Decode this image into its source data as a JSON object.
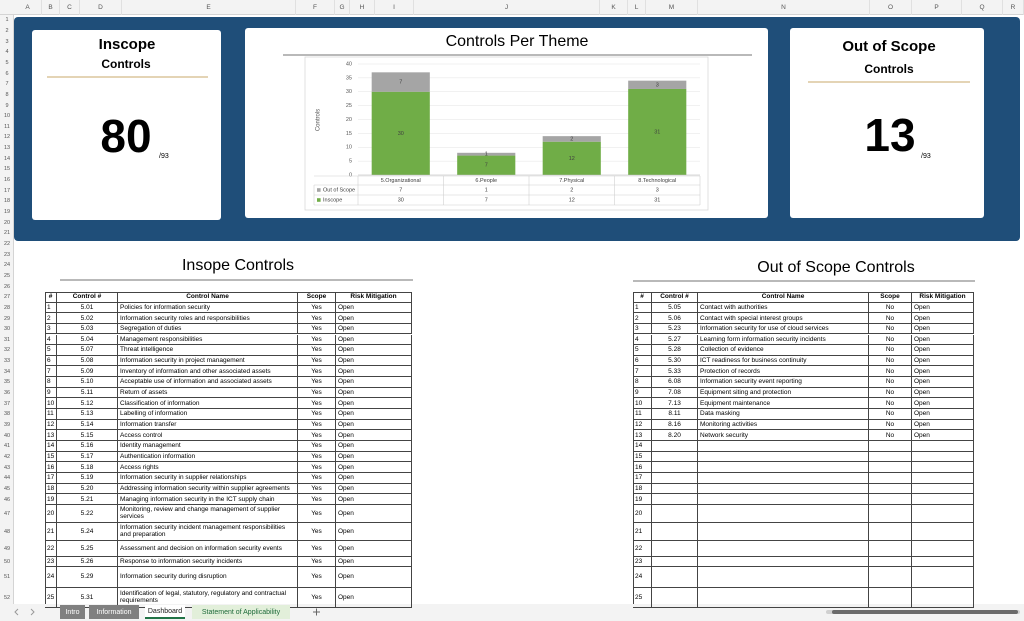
{
  "columns": [
    "A",
    "B",
    "C",
    "D",
    "E",
    "F",
    "G",
    "H",
    "I",
    "J",
    "K",
    "L",
    "M",
    "N",
    "O",
    "P",
    "Q",
    "R"
  ],
  "rows": [
    1,
    2,
    3,
    4,
    5,
    6,
    7,
    8,
    9,
    10,
    11,
    12,
    13,
    14,
    15,
    16,
    17,
    18,
    19,
    20,
    21,
    22,
    23,
    24,
    25,
    26,
    27,
    28,
    29,
    30,
    31,
    32,
    33,
    34,
    35,
    36,
    37,
    38,
    39,
    40,
    41,
    42,
    43,
    44,
    45,
    46,
    47,
    48,
    49,
    50,
    51,
    52
  ],
  "inscope_card": {
    "title": "Inscope",
    "subtitle": "Controls",
    "count": 80,
    "total": "/93"
  },
  "out_card": {
    "title": "Out of Scope",
    "subtitle": "Controls",
    "count": 13,
    "total": "/93"
  },
  "chart_data": {
    "type": "bar",
    "stacked": true,
    "title": "Controls Per Theme",
    "y_label": "Controls",
    "categories": [
      "5.Organizational",
      "6.People",
      "7.Physical",
      "8.Technological"
    ],
    "series": [
      {
        "name": "Out of Scope",
        "color": "#a5a5a5",
        "values": [
          7,
          1,
          2,
          3
        ]
      },
      {
        "name": "Inscope",
        "color": "#70ad47",
        "values": [
          30,
          7,
          12,
          31
        ]
      }
    ],
    "ylim": [
      0,
      40
    ],
    "yticks": [
      0,
      5,
      10,
      15,
      20,
      25,
      30,
      35,
      40
    ],
    "grid": true,
    "data_table": true
  },
  "inscope_table": {
    "title": "Insope Controls",
    "header": [
      "#",
      "Control #",
      "Control Name",
      "Scope",
      "Risk Mitigation"
    ],
    "rows": [
      [
        1,
        "5.01",
        "Policies for information security",
        "Yes",
        "Open"
      ],
      [
        2,
        "5.02",
        "Information security roles and responsibilities",
        "Yes",
        "Open"
      ],
      [
        3,
        "5.03",
        "Segregation of duties",
        "Yes",
        "Open"
      ],
      [
        4,
        "5.04",
        "Management responsibilities",
        "Yes",
        "Open"
      ],
      [
        5,
        "5.07",
        "Threat intelligence",
        "Yes",
        "Open"
      ],
      [
        6,
        "5.08",
        "Information security in project management",
        "Yes",
        "Open"
      ],
      [
        7,
        "5.09",
        "Inventory of information and other associated assets",
        "Yes",
        "Open"
      ],
      [
        8,
        "5.10",
        "Acceptable use of information and associated assets",
        "Yes",
        "Open"
      ],
      [
        9,
        "5.11",
        "Return of assets",
        "Yes",
        "Open"
      ],
      [
        10,
        "5.12",
        "Classification of information",
        "Yes",
        "Open"
      ],
      [
        11,
        "5.13",
        "Labelling of information",
        "Yes",
        "Open"
      ],
      [
        12,
        "5.14",
        "Information transfer",
        "Yes",
        "Open"
      ],
      [
        13,
        "5.15",
        "Access control",
        "Yes",
        "Open"
      ],
      [
        14,
        "5.16",
        "Identity management",
        "Yes",
        "Open"
      ],
      [
        15,
        "5.17",
        "Authentication information",
        "Yes",
        "Open"
      ],
      [
        16,
        "5.18",
        "Access rights",
        "Yes",
        "Open"
      ],
      [
        17,
        "5.19",
        "Information security in supplier relationships",
        "Yes",
        "Open"
      ],
      [
        18,
        "5.20",
        "Addressing information security within supplier agreements",
        "Yes",
        "Open"
      ],
      [
        19,
        "5.21",
        "Managing information security in the ICT supply chain",
        "Yes",
        "Open"
      ],
      [
        20,
        "5.22",
        "Monitoring, review and change management of supplier services",
        "Yes",
        "Open"
      ],
      [
        21,
        "5.24",
        "Information security incident management responsibilities and preparation",
        "Yes",
        "Open"
      ],
      [
        22,
        "5.25",
        "Assessment and decision on information security events",
        "Yes",
        "Open"
      ],
      [
        23,
        "5.26",
        "Response to information security incidents",
        "Yes",
        "Open"
      ],
      [
        24,
        "5.29",
        "Information security during disruption",
        "Yes",
        "Open"
      ],
      [
        25,
        "5.31",
        "Identification of legal, statutory, regulatory and contractual requirements",
        "Yes",
        "Open"
      ]
    ]
  },
  "out_table": {
    "title": "Out of Scope Controls",
    "header": [
      "#",
      "Control #",
      "Control Name",
      "Scope",
      "Risk Mitigation"
    ],
    "rows": [
      [
        1,
        "5.05",
        "Contact with authorities",
        "No",
        "Open"
      ],
      [
        2,
        "5.06",
        "Contact with special interest groups",
        "No",
        "Open"
      ],
      [
        3,
        "5.23",
        "Information security for use of cloud services",
        "No",
        "Open"
      ],
      [
        4,
        "5.27",
        "Learning form information security incidents",
        "No",
        "Open"
      ],
      [
        5,
        "5.28",
        "Collection of evidence",
        "No",
        "Open"
      ],
      [
        6,
        "5.30",
        "ICT readiness for business continuity",
        "No",
        "Open"
      ],
      [
        7,
        "5.33",
        "Protection of records",
        "No",
        "Open"
      ],
      [
        8,
        "6.08",
        "Information security event reporting",
        "No",
        "Open"
      ],
      [
        9,
        "7.08",
        "Equipment siting and protection",
        "No",
        "Open"
      ],
      [
        10,
        "7.13",
        "Equipment maintenance",
        "No",
        "Open"
      ],
      [
        11,
        "8.11",
        "Data masking",
        "No",
        "Open"
      ],
      [
        12,
        "8.16",
        "Monitoring activities",
        "No",
        "Open"
      ],
      [
        13,
        "8.20",
        "Network security",
        "No",
        "Open"
      ],
      [
        14
      ],
      [
        15
      ],
      [
        16
      ],
      [
        17
      ],
      [
        18
      ],
      [
        19
      ],
      [
        20
      ],
      [
        21
      ],
      [
        22
      ],
      [
        23
      ],
      [
        24
      ],
      [
        25
      ]
    ]
  },
  "tabs": [
    "Intro",
    "Information",
    "Dashboard",
    "Statement of Applicability"
  ]
}
